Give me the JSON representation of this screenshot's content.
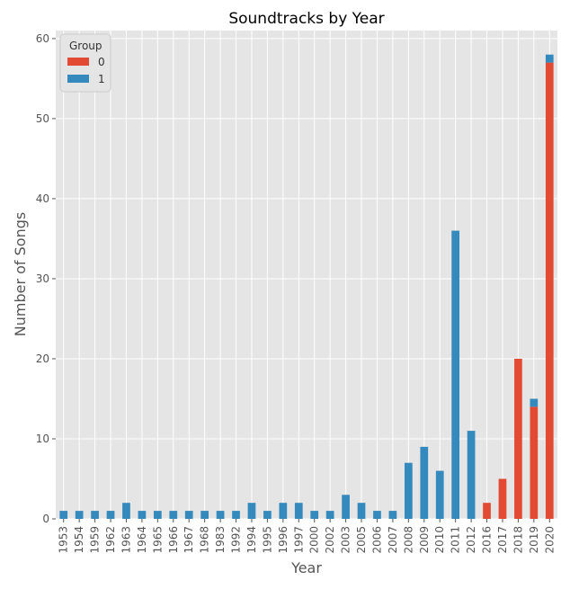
{
  "chart_data": {
    "type": "bar",
    "stacked": true,
    "title": "Soundtracks by Year",
    "xlabel": "Year",
    "ylabel": "Number of Songs",
    "ylim": [
      0,
      61
    ],
    "yticks": [
      0,
      10,
      20,
      30,
      40,
      50,
      60
    ],
    "grid": true,
    "legend": {
      "title": "Group",
      "position": "top-left"
    },
    "categories": [
      "1953",
      "1954",
      "1959",
      "1962",
      "1963",
      "1964",
      "1965",
      "1966",
      "1967",
      "1968",
      "1983",
      "1992",
      "1994",
      "1995",
      "1996",
      "1997",
      "2000",
      "2002",
      "2003",
      "2005",
      "2006",
      "2007",
      "2008",
      "2009",
      "2010",
      "2011",
      "2012",
      "2016",
      "2017",
      "2018",
      "2019",
      "2020"
    ],
    "series": [
      {
        "name": "0",
        "color": "#E24A33",
        "values": [
          0,
          0,
          0,
          0,
          0,
          0,
          0,
          0,
          0,
          0,
          0,
          0,
          0,
          0,
          0,
          0,
          0,
          0,
          0,
          0,
          0,
          0,
          0,
          0,
          0,
          0,
          0,
          2,
          5,
          20,
          14,
          57
        ]
      },
      {
        "name": "1",
        "color": "#348ABD",
        "values": [
          1,
          1,
          1,
          1,
          2,
          1,
          1,
          1,
          1,
          1,
          1,
          1,
          2,
          1,
          2,
          2,
          1,
          1,
          3,
          2,
          1,
          1,
          7,
          9,
          6,
          36,
          11,
          0,
          0,
          0,
          1,
          1
        ]
      }
    ]
  }
}
